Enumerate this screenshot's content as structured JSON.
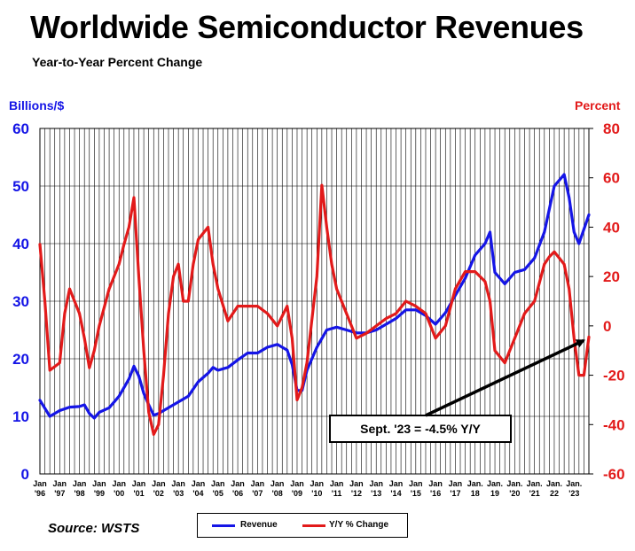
{
  "title": "Worldwide Semiconductor Revenues",
  "subtitle": "Year-to-Year Percent Change",
  "source": "Source: WSTS",
  "annotation": "Sept. '23 = -4.5% Y/Y",
  "colors": {
    "revenue": "#1515e6",
    "yoy": "#e21a1a"
  },
  "chart_data": {
    "type": "line",
    "title": "Worldwide Semiconductor Revenues",
    "subtitle": "Year-to-Year Percent Change",
    "grid": true,
    "legend_position": "bottom",
    "x_axis": {
      "range": [
        1996.0,
        2023.75
      ],
      "tick_labels": [
        {
          "top": "Jan",
          "bottom": "'96",
          "x": 1996
        },
        {
          "top": "Jan",
          "bottom": "'97",
          "x": 1997
        },
        {
          "top": "Jan",
          "bottom": "'98",
          "x": 1998
        },
        {
          "top": "Jan",
          "bottom": "'99",
          "x": 1999
        },
        {
          "top": "Jan",
          "bottom": "'00",
          "x": 2000
        },
        {
          "top": "Jan",
          "bottom": "'01",
          "x": 2001
        },
        {
          "top": "Jan",
          "bottom": "'02",
          "x": 2002
        },
        {
          "top": "Jan",
          "bottom": "'03",
          "x": 2003
        },
        {
          "top": "Jan",
          "bottom": "'04",
          "x": 2004
        },
        {
          "top": "Jan",
          "bottom": "'05",
          "x": 2005
        },
        {
          "top": "Jan",
          "bottom": "'06",
          "x": 2006
        },
        {
          "top": "Jan",
          "bottom": "'07",
          "x": 2007
        },
        {
          "top": "Jan",
          "bottom": "'08",
          "x": 2008
        },
        {
          "top": "Jan",
          "bottom": "'09",
          "x": 2009
        },
        {
          "top": "Jan",
          "bottom": "'10",
          "x": 2010
        },
        {
          "top": "Jan",
          "bottom": "'11",
          "x": 2011
        },
        {
          "top": "Jan",
          "bottom": "'12",
          "x": 2012
        },
        {
          "top": "Jan",
          "bottom": "'13",
          "x": 2013
        },
        {
          "top": "Jan",
          "bottom": "'14",
          "x": 2014
        },
        {
          "top": "Jan",
          "bottom": "'15",
          "x": 2015
        },
        {
          "top": "Jan",
          "bottom": "'16",
          "x": 2016
        },
        {
          "top": "Jan",
          "bottom": "'17",
          "x": 2017
        },
        {
          "top": "Jan.",
          "bottom": "18",
          "x": 2018
        },
        {
          "top": "Jan.",
          "bottom": "19",
          "x": 2019
        },
        {
          "top": "Jan.",
          "bottom": "'20",
          "x": 2020
        },
        {
          "top": "Jan.",
          "bottom": "'21",
          "x": 2021
        },
        {
          "top": "Jan.",
          "bottom": "22",
          "x": 2022
        },
        {
          "top": "Jan.",
          "bottom": "'23",
          "x": 2023
        }
      ]
    },
    "y_left": {
      "label": "Billions/$",
      "range": [
        0,
        60
      ],
      "ticks": [
        0,
        10,
        20,
        30,
        40,
        50,
        60
      ]
    },
    "y_right": {
      "label": "Percent",
      "range": [
        -60,
        80
      ],
      "ticks": [
        -60,
        -40,
        -20,
        0,
        20,
        40,
        60,
        80
      ]
    },
    "series": [
      {
        "name": "Revenue",
        "axis": "left",
        "points": [
          [
            1996.0,
            12.8
          ],
          [
            1996.5,
            10.0
          ],
          [
            1997.0,
            11.0
          ],
          [
            1997.5,
            11.6
          ],
          [
            1998.0,
            11.7
          ],
          [
            1998.25,
            12.0
          ],
          [
            1998.5,
            10.5
          ],
          [
            1998.75,
            9.7
          ],
          [
            1999.0,
            10.7
          ],
          [
            1999.5,
            11.5
          ],
          [
            2000.0,
            13.5
          ],
          [
            2000.5,
            16.5
          ],
          [
            2000.75,
            18.7
          ],
          [
            2001.0,
            17.0
          ],
          [
            2001.25,
            14.0
          ],
          [
            2001.5,
            12.0
          ],
          [
            2001.75,
            10.2
          ],
          [
            2002.0,
            10.5
          ],
          [
            2002.5,
            11.5
          ],
          [
            2003.0,
            12.5
          ],
          [
            2003.5,
            13.5
          ],
          [
            2004.0,
            16.0
          ],
          [
            2004.5,
            17.5
          ],
          [
            2004.75,
            18.5
          ],
          [
            2005.0,
            18.0
          ],
          [
            2005.5,
            18.5
          ],
          [
            2006.0,
            19.8
          ],
          [
            2006.5,
            21.0
          ],
          [
            2007.0,
            21.0
          ],
          [
            2007.5,
            22.0
          ],
          [
            2008.0,
            22.5
          ],
          [
            2008.5,
            21.5
          ],
          [
            2008.75,
            19.0
          ],
          [
            2009.0,
            14.5
          ],
          [
            2009.25,
            14.5
          ],
          [
            2009.5,
            18.0
          ],
          [
            2010.0,
            22.0
          ],
          [
            2010.5,
            25.0
          ],
          [
            2011.0,
            25.5
          ],
          [
            2011.5,
            25.0
          ],
          [
            2012.0,
            24.5
          ],
          [
            2012.5,
            24.5
          ],
          [
            2013.0,
            25.0
          ],
          [
            2013.5,
            26.0
          ],
          [
            2014.0,
            27.0
          ],
          [
            2014.5,
            28.5
          ],
          [
            2015.0,
            28.5
          ],
          [
            2015.5,
            27.5
          ],
          [
            2016.0,
            26.0
          ],
          [
            2016.5,
            28.0
          ],
          [
            2017.0,
            31.0
          ],
          [
            2017.5,
            34.0
          ],
          [
            2018.0,
            38.0
          ],
          [
            2018.5,
            40.0
          ],
          [
            2018.75,
            42.0
          ],
          [
            2019.0,
            35.0
          ],
          [
            2019.5,
            33.0
          ],
          [
            2020.0,
            35.0
          ],
          [
            2020.5,
            35.5
          ],
          [
            2021.0,
            37.5
          ],
          [
            2021.5,
            42.0
          ],
          [
            2021.75,
            46.0
          ],
          [
            2022.0,
            50.0
          ],
          [
            2022.5,
            52.0
          ],
          [
            2022.75,
            48.0
          ],
          [
            2023.0,
            42.0
          ],
          [
            2023.25,
            40.0
          ],
          [
            2023.5,
            42.5
          ],
          [
            2023.75,
            45.0
          ]
        ]
      },
      {
        "name": "Y/Y % Change",
        "axis": "right",
        "points": [
          [
            1996.0,
            33
          ],
          [
            1996.25,
            10
          ],
          [
            1996.5,
            -18
          ],
          [
            1997.0,
            -15
          ],
          [
            1997.25,
            5
          ],
          [
            1997.5,
            15
          ],
          [
            1998.0,
            5
          ],
          [
            1998.25,
            -5
          ],
          [
            1998.5,
            -17
          ],
          [
            1998.75,
            -10
          ],
          [
            1999.0,
            0
          ],
          [
            1999.5,
            15
          ],
          [
            2000.0,
            25
          ],
          [
            2000.25,
            33
          ],
          [
            2000.5,
            40
          ],
          [
            2000.75,
            52
          ],
          [
            2001.0,
            20
          ],
          [
            2001.25,
            -10
          ],
          [
            2001.5,
            -35
          ],
          [
            2001.75,
            -44
          ],
          [
            2002.0,
            -40
          ],
          [
            2002.25,
            -20
          ],
          [
            2002.5,
            5
          ],
          [
            2002.75,
            20
          ],
          [
            2003.0,
            25
          ],
          [
            2003.25,
            10
          ],
          [
            2003.5,
            10
          ],
          [
            2003.75,
            25
          ],
          [
            2004.0,
            35
          ],
          [
            2004.5,
            40
          ],
          [
            2004.75,
            25
          ],
          [
            2005.0,
            15
          ],
          [
            2005.5,
            2
          ],
          [
            2006.0,
            8
          ],
          [
            2006.5,
            8
          ],
          [
            2007.0,
            8
          ],
          [
            2007.5,
            5
          ],
          [
            2008.0,
            0
          ],
          [
            2008.5,
            8
          ],
          [
            2008.75,
            -5
          ],
          [
            2009.0,
            -30
          ],
          [
            2009.25,
            -25
          ],
          [
            2009.5,
            -15
          ],
          [
            2010.0,
            20
          ],
          [
            2010.25,
            57
          ],
          [
            2010.5,
            40
          ],
          [
            2010.75,
            25
          ],
          [
            2011.0,
            15
          ],
          [
            2011.5,
            5
          ],
          [
            2012.0,
            -5
          ],
          [
            2012.5,
            -3
          ],
          [
            2013.0,
            0
          ],
          [
            2013.5,
            3
          ],
          [
            2014.0,
            5
          ],
          [
            2014.5,
            10
          ],
          [
            2015.0,
            8
          ],
          [
            2015.5,
            5
          ],
          [
            2016.0,
            -5
          ],
          [
            2016.5,
            0
          ],
          [
            2017.0,
            15
          ],
          [
            2017.5,
            22
          ],
          [
            2018.0,
            22
          ],
          [
            2018.5,
            18
          ],
          [
            2018.75,
            10
          ],
          [
            2019.0,
            -10
          ],
          [
            2019.5,
            -15
          ],
          [
            2020.0,
            -5
          ],
          [
            2020.5,
            5
          ],
          [
            2021.0,
            10
          ],
          [
            2021.5,
            25
          ],
          [
            2021.75,
            28
          ],
          [
            2022.0,
            30
          ],
          [
            2022.5,
            25
          ],
          [
            2022.75,
            15
          ],
          [
            2023.0,
            -5
          ],
          [
            2023.25,
            -20
          ],
          [
            2023.5,
            -20
          ],
          [
            2023.75,
            -4.5
          ]
        ]
      }
    ],
    "annotation": {
      "text": "Sept. '23 = -4.5% Y/Y",
      "points_to": [
        2023.67,
        -4.5
      ]
    }
  },
  "legend": [
    {
      "label": "Revenue",
      "color": "#1515e6"
    },
    {
      "label": "Y/Y % Change",
      "color": "#e21a1a"
    }
  ]
}
